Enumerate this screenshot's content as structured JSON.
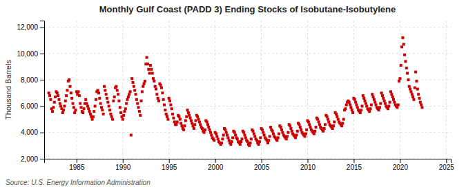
{
  "chart_data": {
    "type": "scatter",
    "title": "Monthly Gulf Coast (PADD 3) Ending Stocks of Isobutane-Isobutylene",
    "y_label": "Thousand Barrels",
    "annotations": [
      "Source: U.S. Energy Information Administration"
    ],
    "color": "#cc0000",
    "marker": "square",
    "grid": true,
    "xlim": [
      1981.5,
      2025.5
    ],
    "ylim": [
      2000,
      12500
    ],
    "xticks": [
      1985,
      1990,
      1995,
      2000,
      2005,
      2010,
      2015,
      2020,
      2025
    ],
    "yticks": [
      {
        "value": 2000,
        "label": "2,000"
      },
      {
        "value": 4000,
        "label": "4,000"
      },
      {
        "value": 6000,
        "label": "6,000"
      },
      {
        "value": 8000,
        "label": "8,000"
      },
      {
        "value": 10000,
        "label": "10,000"
      },
      {
        "value": 12000,
        "label": "12,000"
      }
    ],
    "x": [
      1982.0,
      1982.1,
      1982.2,
      1982.3,
      1982.4,
      1982.5,
      1982.6,
      1982.7,
      1982.8,
      1982.9,
      1983.0,
      1983.1,
      1983.2,
      1983.3,
      1983.4,
      1983.5,
      1983.6,
      1983.7,
      1983.8,
      1983.9,
      1984.0,
      1984.1,
      1984.2,
      1984.3,
      1984.4,
      1984.5,
      1984.6,
      1984.7,
      1984.8,
      1984.9,
      1985.0,
      1985.1,
      1985.2,
      1985.3,
      1985.4,
      1985.5,
      1985.6,
      1985.7,
      1985.8,
      1985.9,
      1986.0,
      1986.1,
      1986.2,
      1986.3,
      1986.4,
      1986.5,
      1986.6,
      1986.7,
      1986.8,
      1986.9,
      1987.0,
      1987.1,
      1987.2,
      1987.3,
      1987.4,
      1987.5,
      1987.6,
      1987.7,
      1987.8,
      1987.9,
      1988.0,
      1988.1,
      1988.2,
      1988.3,
      1988.4,
      1988.5,
      1988.6,
      1988.7,
      1988.8,
      1988.9,
      1989.0,
      1989.1,
      1989.2,
      1989.3,
      1989.4,
      1989.5,
      1989.6,
      1989.7,
      1989.8,
      1989.9,
      1990.0,
      1990.1,
      1990.2,
      1990.3,
      1990.4,
      1990.5,
      1990.6,
      1990.7,
      1990.8,
      1990.9,
      1991.0,
      1991.1,
      1991.2,
      1991.3,
      1991.4,
      1991.5,
      1991.6,
      1991.7,
      1991.8,
      1991.9,
      1992.0,
      1992.1,
      1992.2,
      1992.3,
      1992.4,
      1992.5,
      1992.6,
      1992.7,
      1992.8,
      1992.9,
      1993.0,
      1993.1,
      1993.2,
      1993.3,
      1993.4,
      1993.5,
      1993.6,
      1993.7,
      1993.8,
      1993.9,
      1994.0,
      1994.1,
      1994.2,
      1994.3,
      1994.4,
      1994.5,
      1994.6,
      1994.7,
      1994.8,
      1994.9,
      1995.0,
      1995.1,
      1995.2,
      1995.3,
      1995.4,
      1995.5,
      1995.6,
      1995.7,
      1995.8,
      1995.9,
      1996.0,
      1996.1,
      1996.2,
      1996.3,
      1996.4,
      1996.5,
      1996.6,
      1996.7,
      1996.8,
      1996.9,
      1997.0,
      1997.1,
      1997.2,
      1997.3,
      1997.4,
      1997.5,
      1997.6,
      1997.7,
      1997.8,
      1997.9,
      1998.0,
      1998.1,
      1998.2,
      1998.3,
      1998.4,
      1998.5,
      1998.6,
      1998.7,
      1998.8,
      1998.9,
      1999.0,
      1999.1,
      1999.2,
      1999.3,
      1999.4,
      1999.5,
      1999.6,
      1999.7,
      1999.8,
      1999.9,
      2000.0,
      2000.1,
      2000.2,
      2000.3,
      2000.4,
      2000.5,
      2000.6,
      2000.7,
      2000.8,
      2000.9,
      2001.0,
      2001.1,
      2001.2,
      2001.3,
      2001.4,
      2001.5,
      2001.6,
      2001.7,
      2001.8,
      2001.9,
      2002.0,
      2002.1,
      2002.2,
      2002.3,
      2002.4,
      2002.5,
      2002.6,
      2002.7,
      2002.8,
      2002.9,
      2003.0,
      2003.1,
      2003.2,
      2003.3,
      2003.4,
      2003.5,
      2003.6,
      2003.7,
      2003.8,
      2003.9,
      2004.0,
      2004.1,
      2004.2,
      2004.3,
      2004.4,
      2004.5,
      2004.6,
      2004.7,
      2004.8,
      2004.9,
      2005.0,
      2005.1,
      2005.2,
      2005.3,
      2005.4,
      2005.5,
      2005.6,
      2005.7,
      2005.8,
      2005.9,
      2006.0,
      2006.1,
      2006.2,
      2006.3,
      2006.4,
      2006.5,
      2006.6,
      2006.7,
      2006.8,
      2006.9,
      2007.0,
      2007.1,
      2007.2,
      2007.3,
      2007.4,
      2007.5,
      2007.6,
      2007.7,
      2007.8,
      2007.9,
      2008.0,
      2008.1,
      2008.2,
      2008.3,
      2008.4,
      2008.5,
      2008.6,
      2008.7,
      2008.8,
      2008.9,
      2009.0,
      2009.1,
      2009.2,
      2009.3,
      2009.4,
      2009.5,
      2009.6,
      2009.7,
      2009.8,
      2009.9,
      2010.0,
      2010.1,
      2010.2,
      2010.3,
      2010.4,
      2010.5,
      2010.6,
      2010.7,
      2010.8,
      2010.9,
      2011.0,
      2011.1,
      2011.2,
      2011.3,
      2011.4,
      2011.5,
      2011.6,
      2011.7,
      2011.8,
      2011.9,
      2012.0,
      2012.1,
      2012.2,
      2012.3,
      2012.4,
      2012.5,
      2012.6,
      2012.7,
      2012.8,
      2012.9,
      2013.0,
      2013.1,
      2013.2,
      2013.3,
      2013.4,
      2013.5,
      2013.6,
      2013.7,
      2013.8,
      2013.9,
      2014.0,
      2014.1,
      2014.2,
      2014.3,
      2014.4,
      2014.5,
      2014.6,
      2014.7,
      2014.8,
      2014.9,
      2015.0,
      2015.1,
      2015.2,
      2015.3,
      2015.4,
      2015.5,
      2015.6,
      2015.7,
      2015.8,
      2015.9,
      2016.0,
      2016.1,
      2016.2,
      2016.3,
      2016.4,
      2016.5,
      2016.6,
      2016.7,
      2016.8,
      2016.9,
      2017.0,
      2017.1,
      2017.2,
      2017.3,
      2017.4,
      2017.5,
      2017.6,
      2017.7,
      2017.8,
      2017.9,
      2018.0,
      2018.1,
      2018.2,
      2018.3,
      2018.4,
      2018.5,
      2018.6,
      2018.7,
      2018.8,
      2018.9,
      2019.0,
      2019.1,
      2019.2,
      2019.3,
      2019.4,
      2019.5,
      2019.6,
      2019.7,
      2019.8,
      2019.9,
      2020.0,
      2020.1,
      2020.2,
      2020.3,
      2020.4,
      2020.5,
      2020.6,
      2020.7,
      2020.8,
      2020.9,
      2021.0,
      2021.1,
      2021.2,
      2021.3,
      2021.4,
      2021.5,
      2021.6,
      2021.7,
      2021.8,
      2021.9,
      2022.0,
      2022.1,
      2022.2,
      2022.3,
      2022.4
    ],
    "values": [
      7000,
      6800,
      6500,
      5800,
      5600,
      5900,
      6300,
      6700,
      7100,
      7000,
      6800,
      6500,
      6200,
      6000,
      5800,
      5500,
      5700,
      6000,
      6400,
      6800,
      7200,
      7900,
      8000,
      7500,
      7000,
      6600,
      6200,
      5900,
      5500,
      5700,
      7100,
      6900,
      7100,
      6800,
      6200,
      5900,
      5600,
      5500,
      5800,
      6200,
      6500,
      6200,
      6000,
      5800,
      5600,
      5400,
      5200,
      5000,
      5200,
      5600,
      6000,
      6500,
      7100,
      7200,
      7000,
      6600,
      6200,
      5900,
      5700,
      5400,
      7500,
      7200,
      6900,
      6600,
      6300,
      6000,
      5700,
      5400,
      5200,
      5000,
      6400,
      6700,
      7400,
      7500,
      7200,
      6900,
      6400,
      5900,
      5500,
      5200,
      5000,
      5300,
      5600,
      5800,
      6200,
      6500,
      6700,
      6900,
      7100,
      3800,
      8100,
      7800,
      7500,
      7200,
      6900,
      6500,
      6200,
      5900,
      5600,
      5300,
      6400,
      7100,
      7500,
      7700,
      7900,
      9200,
      9700,
      9200,
      8800,
      8500,
      9100,
      8800,
      8500,
      8100,
      7900,
      7500,
      7300,
      6900,
      6600,
      6400,
      7700,
      7600,
      7400,
      7000,
      6500,
      6100,
      5700,
      5400,
      5200,
      5000,
      6600,
      6400,
      6100,
      5800,
      5400,
      5100,
      4800,
      4600,
      4600,
      4800,
      5300,
      5200,
      5000,
      4700,
      4500,
      4300,
      4200,
      4500,
      4900,
      5200,
      5700,
      5500,
      5300,
      5100,
      4900,
      4700,
      4500,
      4300,
      4600,
      4900,
      5300,
      5200,
      5000,
      4800,
      4600,
      4400,
      4300,
      4100,
      4000,
      4200,
      4900,
      4800,
      4600,
      4400,
      4200,
      4000,
      3800,
      3600,
      3500,
      3400,
      4000,
      3900,
      3700,
      3500,
      3300,
      3200,
      3100,
      3200,
      3500,
      3800,
      4300,
      4200,
      4000,
      3800,
      3600,
      3400,
      3200,
      3100,
      3300,
      3600,
      4100,
      4000,
      3800,
      3600,
      3500,
      3300,
      3200,
      3100,
      3300,
      3500,
      4100,
      4000,
      3800,
      3600,
      3400,
      3300,
      3100,
      3000,
      3200,
      3500,
      4200,
      4100,
      3900,
      3700,
      3500,
      3400,
      3200,
      3100,
      3300,
      3600,
      4300,
      4200,
      4000,
      3800,
      3600,
      3500,
      3400,
      3200,
      3400,
      3700,
      4400,
      4200,
      4100,
      3900,
      3700,
      3600,
      3500,
      3400,
      3600,
      3900,
      4500,
      4400,
      4200,
      4000,
      3800,
      3700,
      3600,
      3500,
      3700,
      4000,
      4600,
      4500,
      4300,
      4100,
      3900,
      3800,
      3700,
      3600,
      3800,
      4100,
      4700,
      4600,
      4400,
      4200,
      4000,
      3900,
      3800,
      3700,
      3900,
      4200,
      4900,
      4800,
      4600,
      4400,
      4200,
      4100,
      4000,
      3900,
      4100,
      4400,
      5100,
      5000,
      4800,
      4600,
      4400,
      4300,
      4200,
      4100,
      4300,
      4600,
      5300,
      5200,
      5000,
      4800,
      4600,
      4500,
      4400,
      4300,
      4500,
      4800,
      5500,
      5400,
      5200,
      5000,
      4800,
      4700,
      4600,
      4500,
      4700,
      5000,
      5700,
      5800,
      6100,
      6300,
      6400,
      6300,
      6100,
      5900,
      5700,
      5500,
      6600,
      6500,
      6300,
      6100,
      5900,
      5700,
      5600,
      5500,
      5700,
      6000,
      6800,
      6600,
      6400,
      6200,
      6000,
      5800,
      5700,
      5600,
      5800,
      6100,
      6900,
      6700,
      6500,
      6300,
      6100,
      5900,
      5800,
      5700,
      5900,
      6200,
      7000,
      6800,
      6600,
      6400,
      6200,
      6000,
      5900,
      5800,
      6000,
      6300,
      7100,
      6900,
      6700,
      6500,
      6300,
      6100,
      6000,
      5900,
      6100,
      7900,
      8100,
      9100,
      10500,
      11200,
      10700,
      9900,
      9400,
      8900,
      8500,
      8000,
      7500,
      7300,
      7100,
      6900,
      6700,
      6500,
      7400,
      8600,
      7900,
      7300,
      6900,
      6600,
      6300,
      6100,
      5900
    ]
  }
}
